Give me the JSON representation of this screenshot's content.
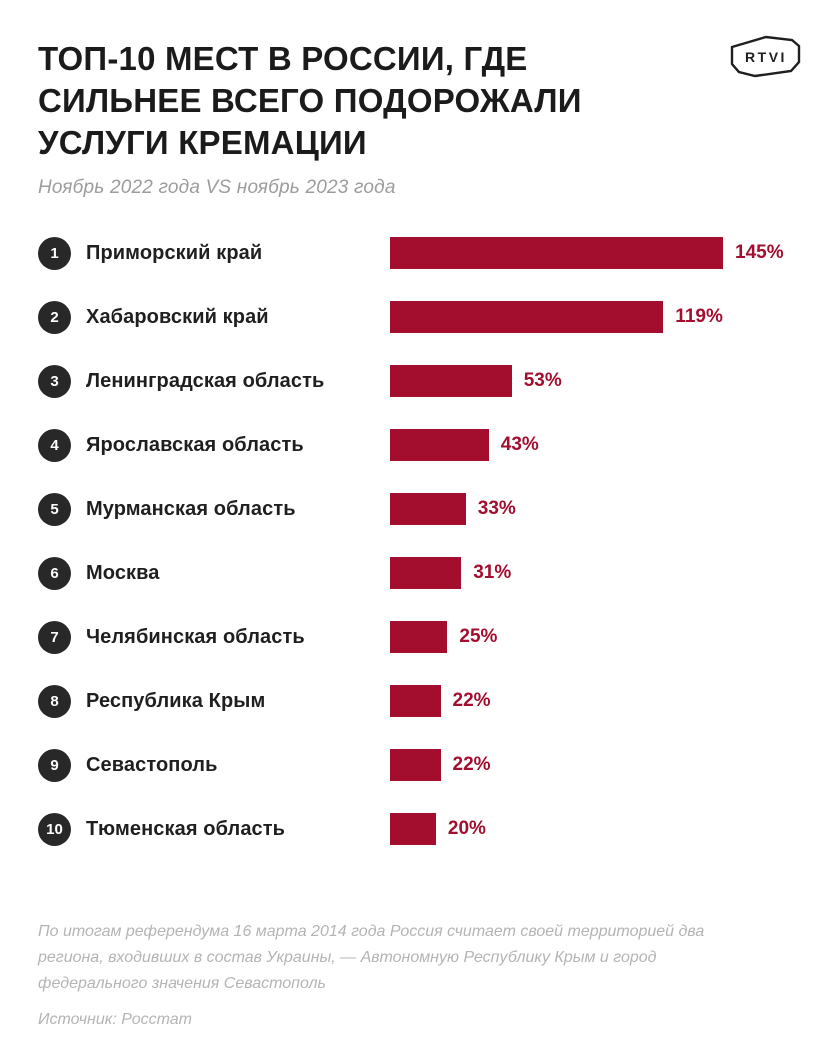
{
  "header": {
    "title": "ТОП-10 МЕСТ В РОССИИ, ГДЕ СИЛЬНЕЕ ВСЕГО ПОДОРОЖАЛИ УСЛУГИ КРЕМАЦИИ",
    "title_lines": [
      "ТОП-10 МЕСТ В РОССИИ, ГДЕ",
      "СИЛЬНЕЕ ВСЕГО ПОДОРОЖАЛИ",
      "УСЛУГИ КРЕМАЦИИ"
    ],
    "subtitle": "Ноябрь 2022 года VS ноябрь 2023 года",
    "logo_text": "RTVI"
  },
  "chart_data": {
    "type": "bar",
    "orientation": "horizontal",
    "title": "ТОП-10 МЕСТ В РОССИИ, ГДЕ СИЛЬНЕЕ ВСЕГО ПОДОРОЖАЛИ УСЛУГИ КРЕМАЦИИ",
    "subtitle": "Ноябрь 2022 года VS ноябрь 2023 года",
    "ranks": [
      1,
      2,
      3,
      4,
      5,
      6,
      7,
      8,
      9,
      10
    ],
    "categories": [
      "Приморский край",
      "Хабаровский край",
      "Ленинградская область",
      "Ярославская область",
      "Мурманская область",
      "Москва",
      "Челябинская область",
      "Республика Крым",
      "Севастополь",
      "Тюменская область"
    ],
    "values": [
      145,
      119,
      53,
      43,
      33,
      31,
      25,
      22,
      22,
      20
    ],
    "value_labels": [
      "145%",
      "119%",
      "53%",
      "43%",
      "33%",
      "31%",
      "25%",
      "22%",
      "22%",
      "20%"
    ],
    "unit": "%",
    "xlim": [
      0,
      145
    ],
    "grid": false,
    "legend": false,
    "bar_color": "#A30D2E",
    "value_color": "#A30D2E",
    "rank_badge_color": "#282828"
  },
  "footer": {
    "note": "По итогам референдума 16 марта 2014 года Россия считает своей территорией два региона, входивших в состав Украины, — Автономную Республику Крым и город федерального значения Севастополь",
    "source": "Источник: Росстат"
  }
}
